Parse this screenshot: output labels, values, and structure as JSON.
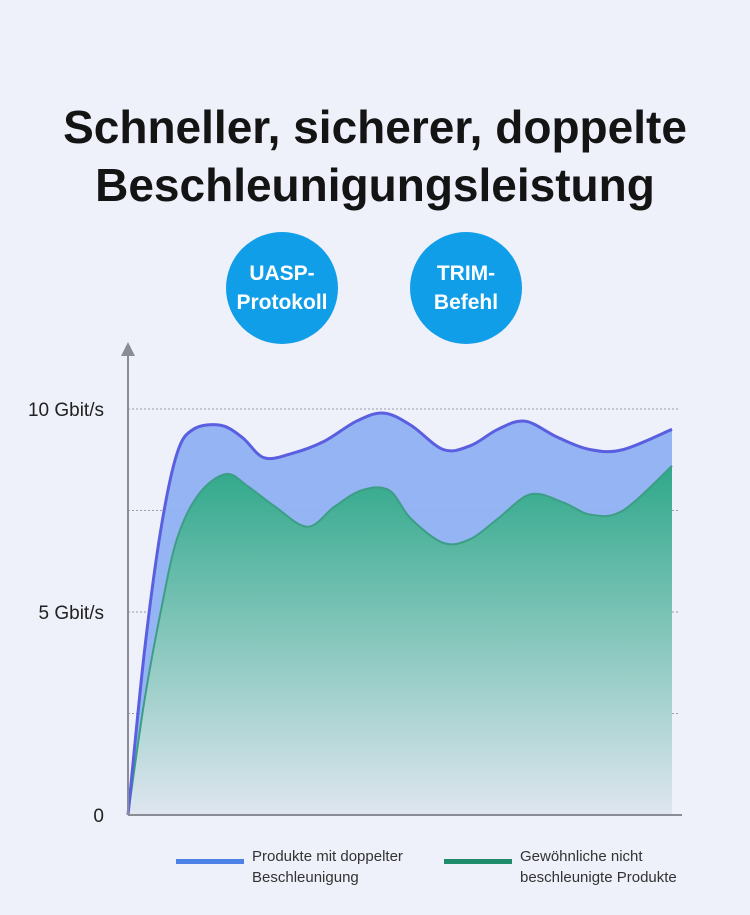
{
  "title": {
    "line1": "Schneller, sicherer, doppelte",
    "line2": "Beschleunigungsleistung"
  },
  "badges": [
    {
      "line1": "UASP-",
      "line2": "Protokoll"
    },
    {
      "line1": "TRIM-",
      "line2": "Befehl"
    }
  ],
  "colors": {
    "background": "#eef0fa",
    "badge": "#119ee8",
    "double_line": "#5a5fe0",
    "double_fill": "#8fb0f2",
    "normal_fill_top": "#2fa88a",
    "normal_fill_bottom": "#dfe6ef",
    "legend_double": "#4c82e6",
    "legend_normal": "#1f8c6b"
  },
  "chart_data": {
    "type": "area",
    "y_ticks": [
      {
        "value": 0,
        "label": "0"
      },
      {
        "value": 5,
        "label": "5 Gbit/s"
      },
      {
        "value": 10,
        "label": "10 Gbit/s"
      }
    ],
    "gridlines": [
      2.5,
      5,
      7.5,
      10
    ],
    "ylim": [
      0,
      11.7
    ],
    "xlim": [
      0,
      100
    ],
    "series": [
      {
        "name": "Produkte mit doppelter Beschleunigung",
        "color": "#5a5fe0",
        "points": [
          [
            0,
            0
          ],
          [
            3,
            4
          ],
          [
            6,
            7
          ],
          [
            9,
            8.9
          ],
          [
            12,
            9.5
          ],
          [
            17,
            9.6
          ],
          [
            21,
            9.3
          ],
          [
            25,
            8.8
          ],
          [
            30,
            8.9
          ],
          [
            36,
            9.2
          ],
          [
            42,
            9.7
          ],
          [
            47,
            9.9
          ],
          [
            52,
            9.6
          ],
          [
            58,
            9.0
          ],
          [
            63,
            9.1
          ],
          [
            68,
            9.5
          ],
          [
            73,
            9.7
          ],
          [
            79,
            9.3
          ],
          [
            85,
            9.0
          ],
          [
            91,
            9.0
          ],
          [
            100,
            9.5
          ]
        ]
      },
      {
        "name": "Gewöhnliche nicht beschleunigte Produkte",
        "color": "#1f8c6b",
        "points": [
          [
            0,
            0
          ],
          [
            3,
            2.8
          ],
          [
            6,
            5
          ],
          [
            9,
            6.8
          ],
          [
            13,
            7.9
          ],
          [
            18,
            8.4
          ],
          [
            22,
            8.1
          ],
          [
            27,
            7.6
          ],
          [
            33,
            7.1
          ],
          [
            38,
            7.6
          ],
          [
            43,
            8.0
          ],
          [
            48,
            8.0
          ],
          [
            52,
            7.3
          ],
          [
            58,
            6.7
          ],
          [
            63,
            6.8
          ],
          [
            68,
            7.3
          ],
          [
            74,
            7.9
          ],
          [
            80,
            7.7
          ],
          [
            85,
            7.4
          ],
          [
            91,
            7.5
          ],
          [
            100,
            8.6
          ]
        ]
      }
    ]
  },
  "legend": {
    "double": {
      "line1": "Produkte mit doppelter",
      "line2": "Beschleunigung"
    },
    "normal": {
      "line1": "Gewöhnliche nicht",
      "line2": "beschleunigte Produkte"
    }
  }
}
